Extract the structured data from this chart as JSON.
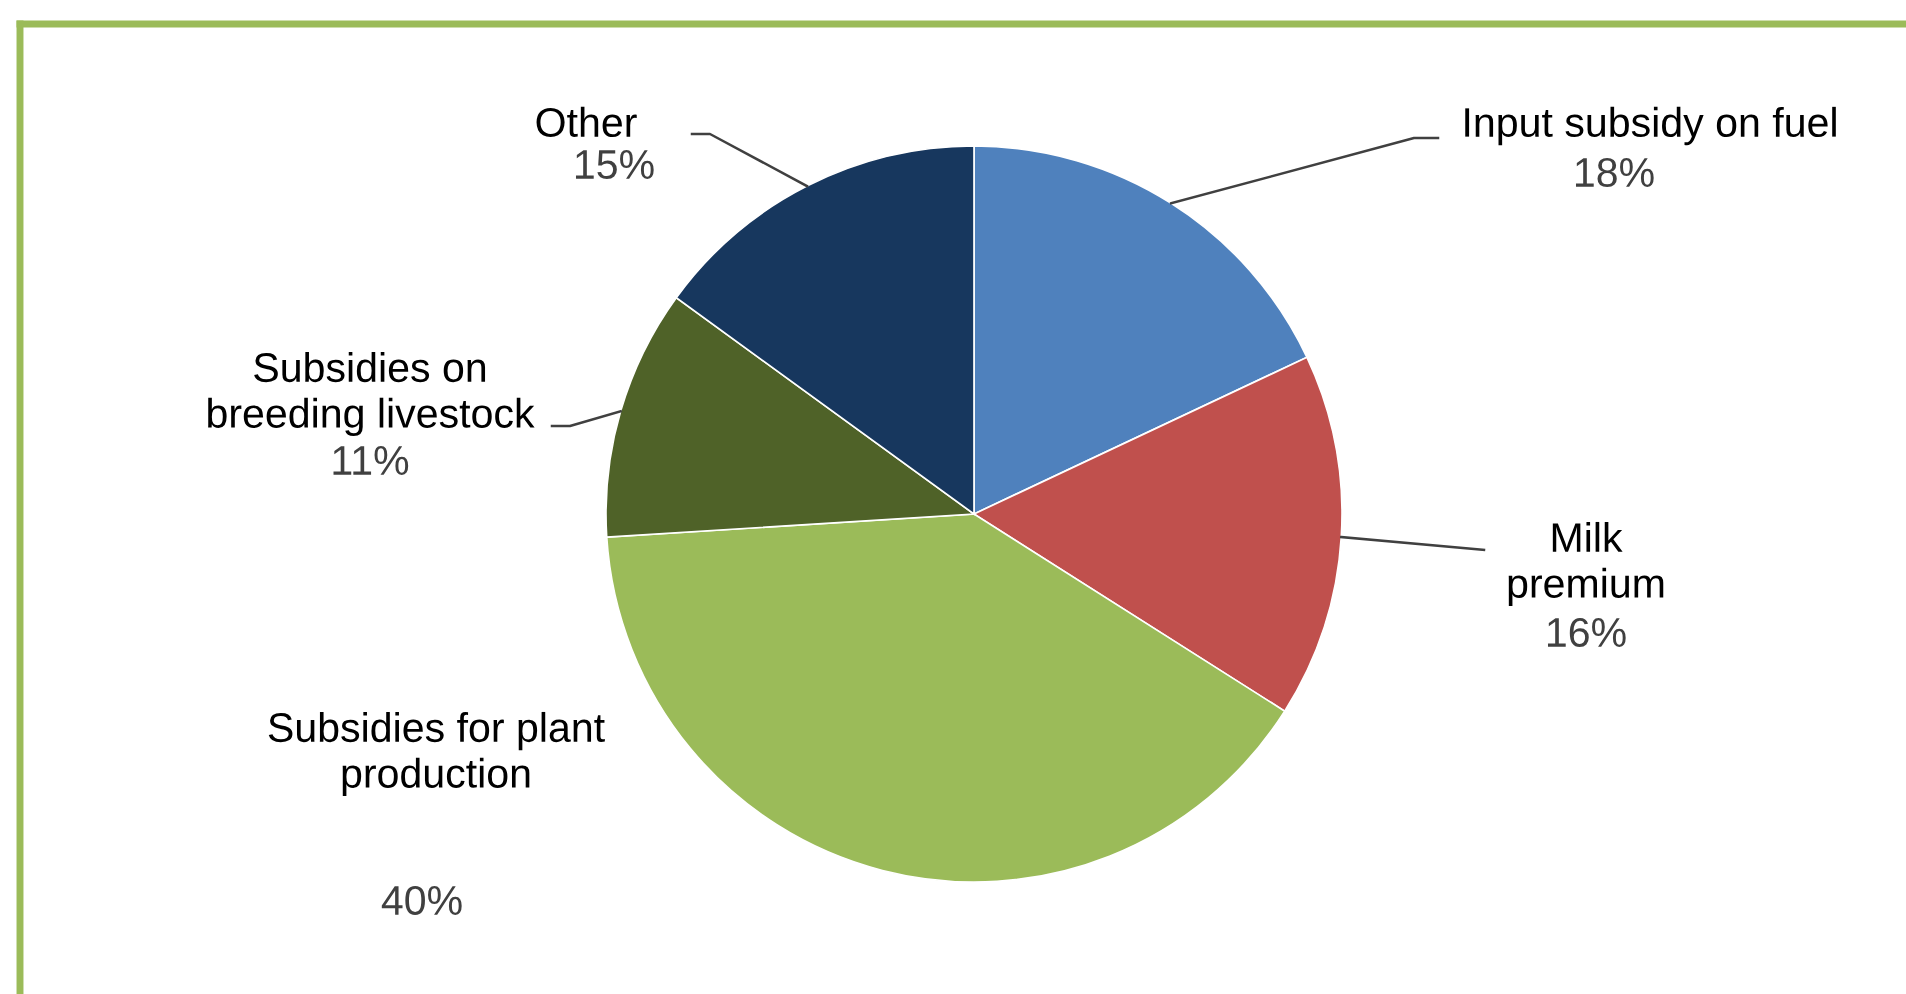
{
  "chart_data": {
    "type": "pie",
    "categories": [
      "Input subsidy on fuel",
      "Milk premium",
      "Subsidies for plant production",
      "Subsidies on breeding livestock",
      "Other"
    ],
    "values": [
      18,
      16,
      40,
      11,
      15
    ],
    "colors": [
      "#4f81bd",
      "#c0504d",
      "#9bbb59",
      "#4f6228",
      "#17375e"
    ],
    "value_labels": [
      "18%",
      "16%",
      "40%",
      "11%",
      "15%"
    ]
  }
}
